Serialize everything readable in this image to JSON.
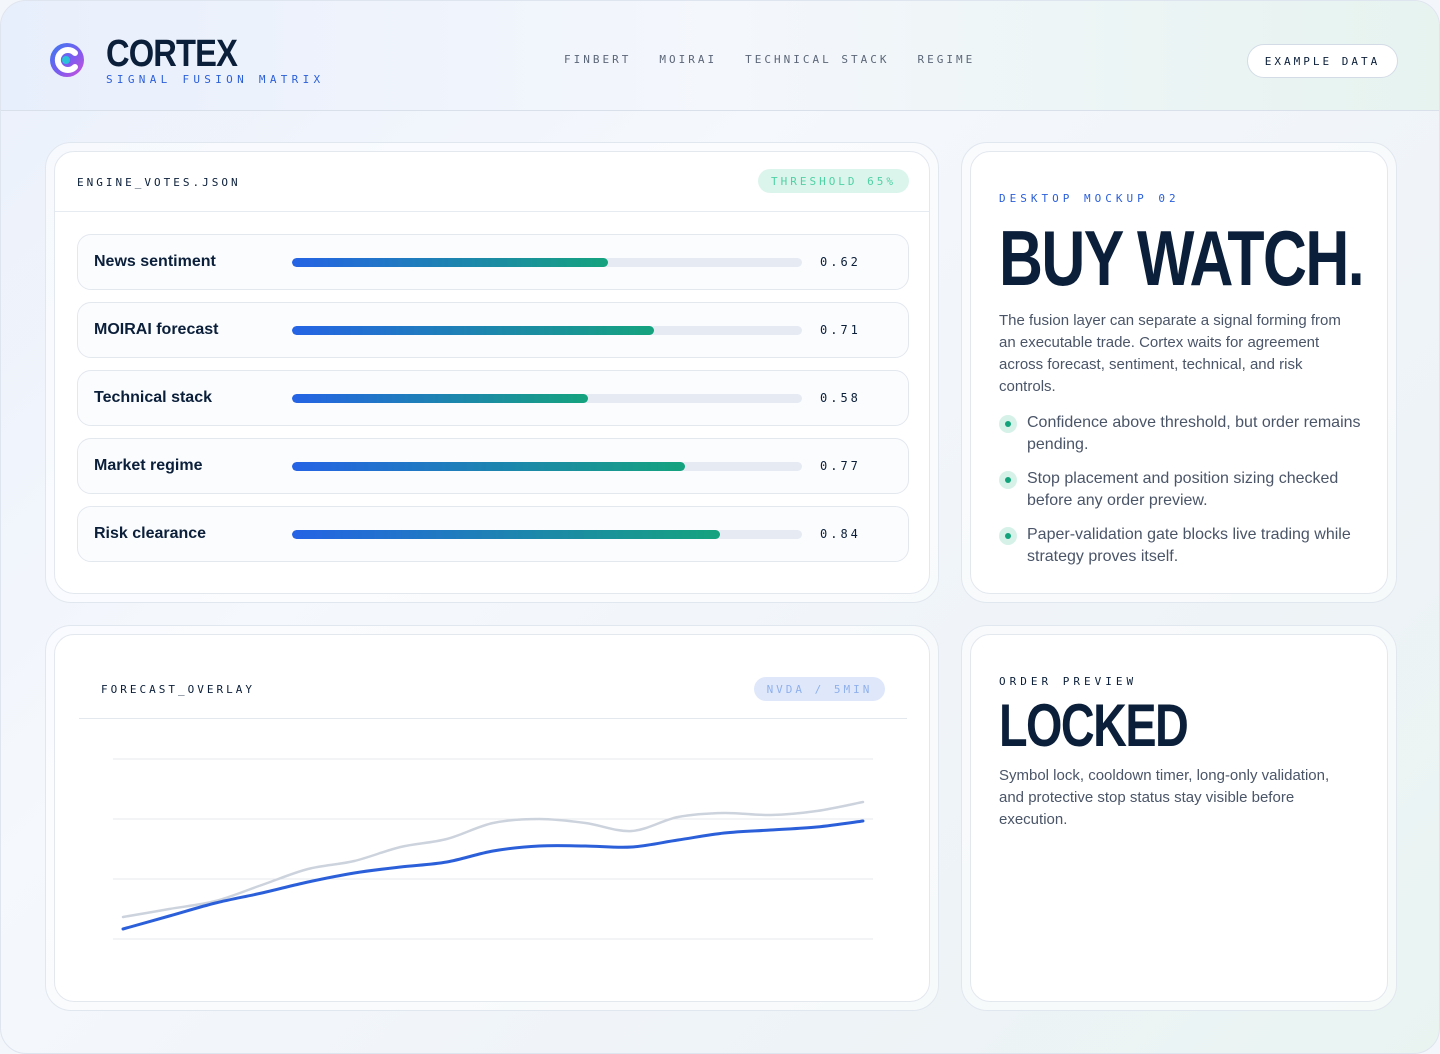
{
  "header": {
    "brand": "CORTEX",
    "subtitle": "SIGNAL FUSION MATRIX",
    "nav": [
      "FINBERT",
      "MOIRAI",
      "TECHNICAL STACK",
      "REGIME"
    ],
    "example_button": "EXAMPLE DATA"
  },
  "votes_card": {
    "title": "ENGINE_VOTES.JSON",
    "threshold_pill": "THRESHOLD 65%",
    "rows": [
      {
        "label": "News sentiment",
        "value": 0.62,
        "value_text": "0.62"
      },
      {
        "label": "MOIRAI forecast",
        "value": 0.71,
        "value_text": "0.71"
      },
      {
        "label": "Technical stack",
        "value": 0.58,
        "value_text": "0.58"
      },
      {
        "label": "Market regime",
        "value": 0.77,
        "value_text": "0.77"
      },
      {
        "label": "Risk clearance",
        "value": 0.84,
        "value_text": "0.84"
      }
    ]
  },
  "summary_card": {
    "eyebrow": "DESKTOP MOCKUP 02",
    "headline": "BUY WATCH.",
    "body": "The fusion layer can separate a signal forming from an executable trade. Cortex waits for agreement across forecast, sentiment, technical, and risk controls.",
    "bullets": [
      "Confidence above threshold, but order remains pending.",
      "Stop placement and position sizing checked before any order preview.",
      "Paper-validation gate blocks live trading while strategy proves itself."
    ]
  },
  "forecast_card": {
    "title": "FORECAST_OVERLAY",
    "pill": "NVDA / 5MIN"
  },
  "order_card": {
    "eyebrow": "ORDER PREVIEW",
    "headline": "LOCKED",
    "body": "Symbol lock, cooldown timer, long-only validation, and protective stop status stay visible before execution."
  },
  "chart_data": {
    "type": "line",
    "title": "",
    "xlabel": "",
    "ylabel": "",
    "grid": true,
    "x": [
      0,
      1,
      2,
      3,
      4,
      5,
      6,
      7,
      8,
      9,
      10,
      11,
      12,
      13,
      14,
      15,
      16
    ],
    "series": [
      {
        "values": [
          2,
          10,
          18,
          34,
          50,
          58,
          72,
          80,
          96,
          100,
          96,
          88,
          102,
          106,
          104,
          108,
          117
        ],
        "color": "#cdd3dd"
      },
      {
        "values": [
          -10,
          3,
          16,
          26,
          37,
          46,
          52,
          57,
          68,
          73,
          73,
          72,
          79,
          86,
          89,
          92,
          98
        ],
        "color": "#2b5fd9"
      }
    ],
    "ylim": [
      -20,
      160
    ],
    "colors": {
      "accent_blue": "#2563e5",
      "accent_green": "#15a37e"
    }
  }
}
